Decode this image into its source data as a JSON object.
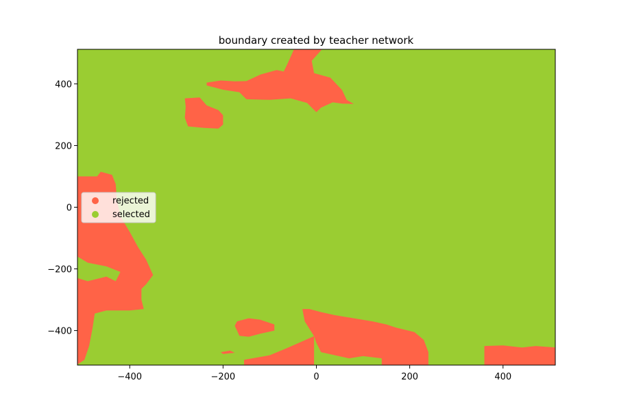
{
  "chart_data": {
    "type": "scatter",
    "title": "boundary created by teacher network",
    "xlabel": "",
    "ylabel": "",
    "xlim": [
      -512,
      512
    ],
    "ylim": [
      -512,
      512
    ],
    "x_ticks": [
      -400,
      -200,
      0,
      200,
      400
    ],
    "y_ticks": [
      400,
      200,
      0,
      -200,
      -400
    ],
    "x_tick_labels": [
      "−400",
      "−200",
      "0",
      "200",
      "400"
    ],
    "y_tick_labels": [
      "400",
      "200",
      "0",
      "−200",
      "−400"
    ],
    "grid": false,
    "legend_position": "center-left",
    "series": [
      {
        "name": "rejected",
        "color": "#ff6347"
      },
      {
        "name": "selected",
        "color": "#9acd32"
      }
    ],
    "regions": {
      "selected_background": "whole plane except rejected regions",
      "rejected": [
        {
          "label": "top island",
          "points": [
            [
              -235,
              404
            ],
            [
              -205,
              411
            ],
            [
              -175,
              408
            ],
            [
              -150,
              409
            ],
            [
              -120,
              430
            ],
            [
              -85,
              445
            ],
            [
              -70,
              440
            ],
            [
              -62,
              465
            ],
            [
              -48,
              512
            ],
            [
              12,
              512
            ],
            [
              -10,
              475
            ],
            [
              -5,
              435
            ],
            [
              30,
              420
            ],
            [
              55,
              380
            ],
            [
              65,
              348
            ],
            [
              80,
              335
            ],
            [
              55,
              336
            ],
            [
              35,
              340
            ],
            [
              10,
              323
            ],
            [
              0,
              308
            ],
            [
              -20,
              338
            ],
            [
              -55,
              353
            ],
            [
              -100,
              348
            ],
            [
              -150,
              350
            ],
            [
              -165,
              373
            ],
            [
              -200,
              381
            ],
            [
              -235,
              395
            ]
          ]
        },
        {
          "label": "upper left blob",
          "points": [
            [
              -282,
              353
            ],
            [
              -250,
              356
            ],
            [
              -235,
              330
            ],
            [
              -210,
              315
            ],
            [
              -200,
              298
            ],
            [
              -200,
              268
            ],
            [
              -210,
              255
            ],
            [
              -240,
              257
            ],
            [
              -275,
              262
            ],
            [
              -282,
              290
            ],
            [
              -280,
              325
            ]
          ]
        },
        {
          "label": "left strip",
          "points": [
            [
              -512,
              100
            ],
            [
              -470,
              100
            ],
            [
              -462,
              115
            ],
            [
              -438,
              105
            ],
            [
              -430,
              75
            ],
            [
              -428,
              30
            ],
            [
              -420,
              -30
            ],
            [
              -400,
              -80
            ],
            [
              -382,
              -130
            ],
            [
              -365,
              -170
            ],
            [
              -350,
              -220
            ],
            [
              -365,
              -250
            ],
            [
              -375,
              -265
            ],
            [
              -375,
              -300
            ],
            [
              -370,
              -330
            ],
            [
              -400,
              -335
            ],
            [
              -450,
              -335
            ],
            [
              -475,
              -345
            ],
            [
              -480,
              -395
            ],
            [
              -487,
              -450
            ],
            [
              -497,
              -495
            ],
            [
              -512,
              -510
            ],
            [
              -512,
              -230
            ],
            [
              -490,
              -240
            ],
            [
              -450,
              -225
            ],
            [
              -430,
              -240
            ],
            [
              -420,
              -210
            ],
            [
              -450,
              -192
            ],
            [
              -490,
              -180
            ],
            [
              -512,
              -160
            ]
          ]
        },
        {
          "label": "bottom small blob",
          "points": [
            [
              -170,
              -370
            ],
            [
              -145,
              -360
            ],
            [
              -120,
              -365
            ],
            [
              -90,
              -380
            ],
            [
              -90,
              -400
            ],
            [
              -120,
              -410
            ],
            [
              -145,
              -420
            ],
            [
              -165,
              -417
            ],
            [
              -170,
              -400
            ],
            [
              -175,
              -385
            ]
          ]
        },
        {
          "label": "bottom middle",
          "points": [
            [
              -155,
              -495
            ],
            [
              -100,
              -480
            ],
            [
              -60,
              -455
            ],
            [
              -5,
              -418
            ],
            [
              -5,
              -512
            ],
            [
              -155,
              -512
            ]
          ]
        },
        {
          "label": "bottom right",
          "points": [
            [
              -30,
              -330
            ],
            [
              -15,
              -330
            ],
            [
              10,
              -340
            ],
            [
              40,
              -350
            ],
            [
              80,
              -360
            ],
            [
              120,
              -370
            ],
            [
              150,
              -380
            ],
            [
              170,
              -390
            ],
            [
              210,
              -405
            ],
            [
              230,
              -430
            ],
            [
              240,
              -470
            ],
            [
              240,
              -512
            ],
            [
              360,
              -512
            ],
            [
              360,
              -450
            ],
            [
              400,
              -448
            ],
            [
              440,
              -455
            ],
            [
              470,
              -450
            ],
            [
              512,
              -455
            ],
            [
              512,
              -512
            ],
            [
              380,
              -512
            ],
            [
              385,
              -470
            ],
            [
              410,
              -455
            ],
            [
              420,
              -470
            ],
            [
              420,
              -512
            ],
            [
              140,
              -512
            ],
            [
              140,
              -490
            ],
            [
              100,
              -483
            ],
            [
              70,
              -490
            ],
            [
              40,
              -480
            ],
            [
              10,
              -470
            ],
            [
              0,
              -440
            ],
            [
              -5,
              -418
            ],
            [
              -25,
              -370
            ]
          ]
        },
        {
          "label": "bottom tiny dash",
          "points": [
            [
              -205,
              -470
            ],
            [
              -185,
              -465
            ],
            [
              -175,
              -472
            ],
            [
              -200,
              -476
            ]
          ]
        }
      ]
    }
  }
}
